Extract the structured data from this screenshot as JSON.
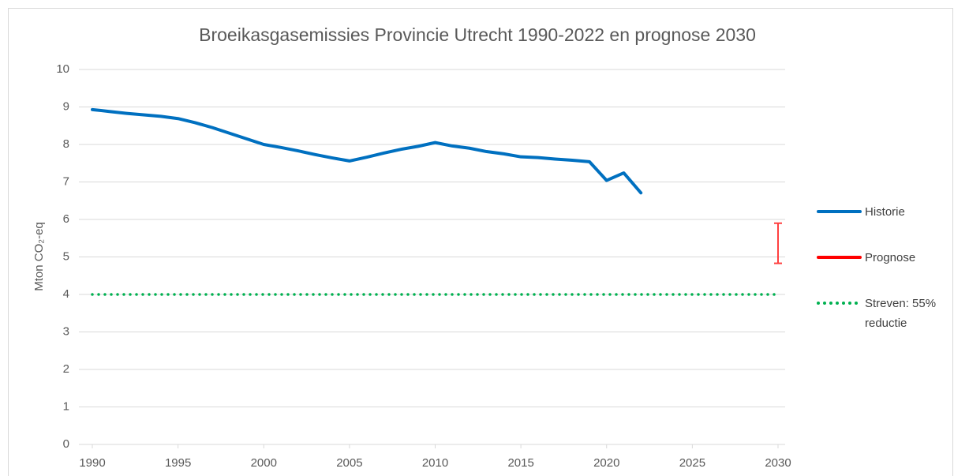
{
  "chart_data": {
    "type": "line",
    "title": "Broeikasgasemissies Provincie Utrecht 1990-2022 en prognose 2030",
    "y_label": "Mton CO₂-eq",
    "xlim": [
      1990,
      2030
    ],
    "xticks": [
      1990,
      1995,
      2000,
      2005,
      2010,
      2015,
      2020,
      2025,
      2030
    ],
    "ylim": [
      0,
      10
    ],
    "yticks": [
      0,
      1,
      2,
      3,
      4,
      5,
      6,
      7,
      8,
      9,
      10
    ],
    "grid": true,
    "legend": "right",
    "series": [
      {
        "name": "Historie",
        "color": "#0070c0",
        "style": "solid",
        "x": [
          1990,
          1991,
          1992,
          1993,
          1994,
          1995,
          1996,
          1997,
          1998,
          1999,
          2000,
          2001,
          2002,
          2003,
          2004,
          2005,
          2006,
          2007,
          2008,
          2009,
          2010,
          2011,
          2012,
          2013,
          2014,
          2015,
          2016,
          2017,
          2018,
          2019,
          2020,
          2021,
          2022
        ],
        "values": [
          8.93,
          8.88,
          8.83,
          8.79,
          8.75,
          8.69,
          8.58,
          8.45,
          8.3,
          8.15,
          8.0,
          7.92,
          7.83,
          7.73,
          7.64,
          7.56,
          7.66,
          7.77,
          7.87,
          7.95,
          8.05,
          7.96,
          7.9,
          7.81,
          7.75,
          7.67,
          7.65,
          7.61,
          7.58,
          7.54,
          7.04,
          7.24,
          6.71
        ]
      },
      {
        "name": "Prognose",
        "color": "#ff0000",
        "style": "range",
        "x": [
          2030
        ],
        "low": [
          4.83
        ],
        "high": [
          5.9
        ]
      },
      {
        "name": "Streven: 55% reductie",
        "color": "#00b050",
        "style": "dotted",
        "x": [
          1990,
          2030
        ],
        "values": [
          4,
          4
        ]
      }
    ]
  }
}
